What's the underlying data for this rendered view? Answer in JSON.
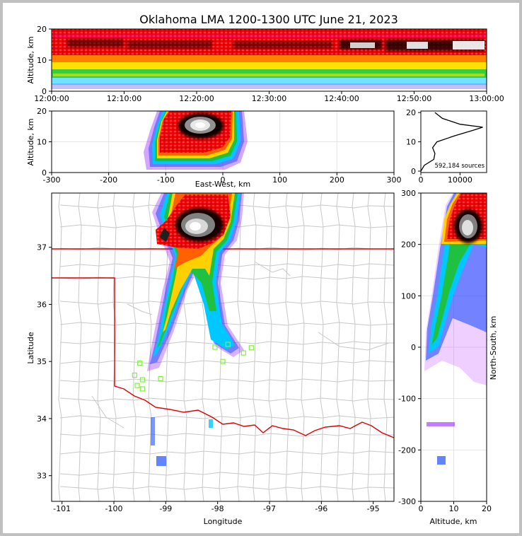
{
  "title": "Oklahoma LMA 1200-1300 UTC June 21, 2023",
  "colors": {
    "state_border": "#e00000",
    "county_lines": "#c8c8c8",
    "stations": "#80f040",
    "frame_bg": "#c0c0c0"
  },
  "chart_data": [
    {
      "type": "heatmap",
      "name": "altitude vs time",
      "x_ticks": [
        "12:00:00",
        "12:10:00",
        "12:20:00",
        "12:30:00",
        "12:40:00",
        "12:50:00",
        "13:00:00"
      ],
      "y_ticks": [
        "0",
        "10",
        "20"
      ],
      "ylabel": "Altitude, km",
      "ylim": [
        0,
        20
      ]
    },
    {
      "type": "heatmap",
      "name": "altitude vs east-west",
      "x_ticks": [
        "-300",
        "-200",
        "-100",
        "0",
        "100",
        "200",
        "300"
      ],
      "y_ticks": [
        "0",
        "10",
        "20"
      ],
      "xlabel": "East-West, km",
      "ylabel": "Altitude, km",
      "xlim": [
        -300,
        300
      ],
      "ylim": [
        0,
        20
      ]
    },
    {
      "type": "line",
      "name": "altitude histogram",
      "x_ticks": [
        "0",
        "10000"
      ],
      "y_ticks": [
        "0",
        "10",
        "20"
      ],
      "annotation": "592,184 sources",
      "profile": [
        [
          0,
          0
        ],
        [
          900,
          2
        ],
        [
          3300,
          4
        ],
        [
          3600,
          6
        ],
        [
          3000,
          8
        ],
        [
          4100,
          10
        ],
        [
          8500,
          12
        ],
        [
          13500,
          14
        ],
        [
          15800,
          15
        ],
        [
          10000,
          16
        ],
        [
          5500,
          18
        ],
        [
          3600,
          20
        ]
      ]
    },
    {
      "type": "heatmap",
      "name": "plan view",
      "x_ticks": [
        "-101",
        "-100",
        "-99",
        "-98",
        "-97",
        "-96",
        "-95"
      ],
      "y_ticks": [
        "33",
        "34",
        "35",
        "36",
        "37"
      ],
      "xlabel": "Longitude",
      "ylabel": "Latitude",
      "xlim": [
        -101.2,
        -94.6
      ],
      "ylim": [
        32.55,
        37.95
      ]
    },
    {
      "type": "heatmap",
      "name": "north-south vs altitude",
      "x_ticks": [
        "0",
        "10",
        "20"
      ],
      "y_ticks": [
        "-300",
        "-200",
        "-100",
        "0",
        "100",
        "200",
        "300"
      ],
      "xlabel": "Altitude, km",
      "ylabel": "North-South, km",
      "xlim": [
        0,
        20
      ],
      "ylim": [
        -300,
        300
      ]
    }
  ]
}
